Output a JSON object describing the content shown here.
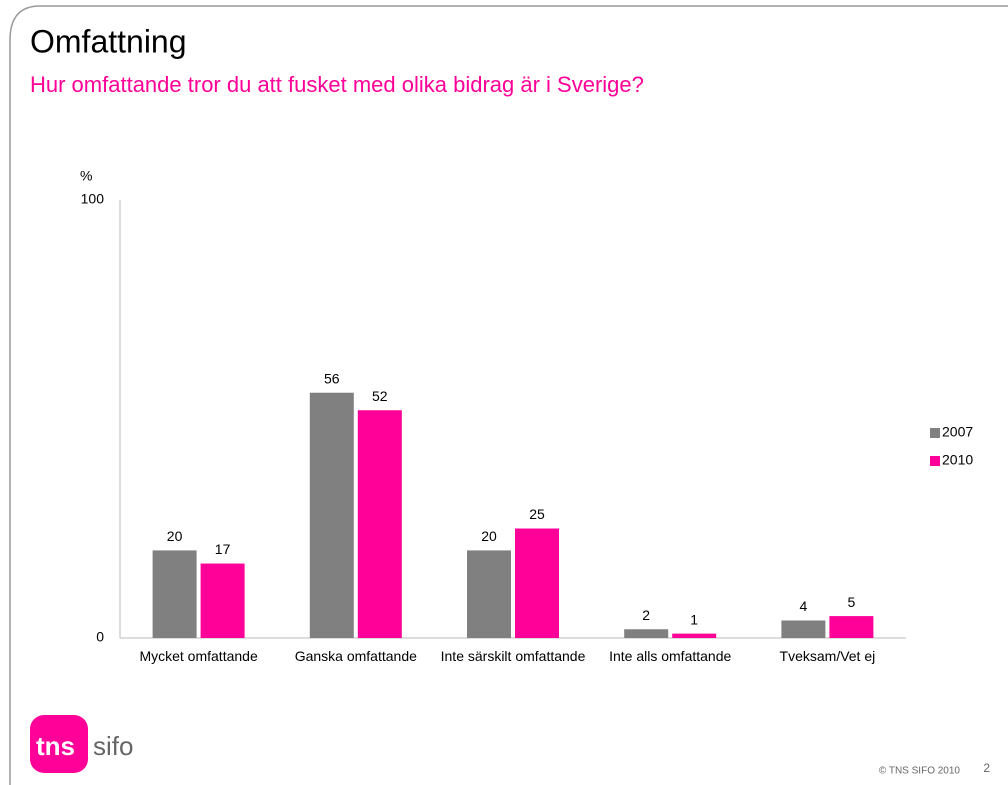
{
  "chart_data": {
    "type": "bar",
    "title": "Omfattning",
    "subtitle": "Hur omfattande tror du att fusket med olika bidrag är i Sverige?",
    "y_label": "%",
    "categories": [
      "Mycket omfattande",
      "Ganska omfattande",
      "Inte särskilt omfattande",
      "Inte alls omfattande",
      "Tveksam/Vet ej"
    ],
    "series": [
      {
        "name": "2007",
        "color": "#808080",
        "values": [
          20,
          56,
          20,
          2,
          4
        ]
      },
      {
        "name": "2010",
        "color": "#ff0099",
        "values": [
          17,
          52,
          25,
          1,
          5
        ]
      }
    ],
    "ylim": [
      0,
      100
    ],
    "yticks": [
      0,
      100
    ],
    "grid": false,
    "legend": "right"
  },
  "logo": {
    "left": "tns",
    "right": "sifo"
  },
  "footer": {
    "copyright": "© TNS SIFO 2010",
    "page_number": "2"
  }
}
